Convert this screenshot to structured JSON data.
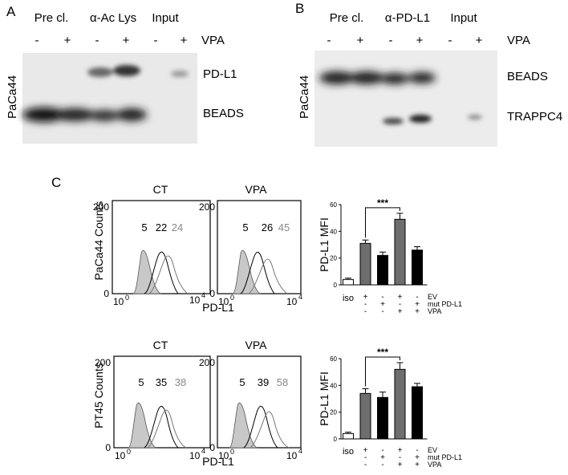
{
  "panelA": {
    "letter": "A",
    "groups": [
      "Pre cl.",
      "α-Ac Lys",
      "Input"
    ],
    "lanes": [
      "-",
      "+",
      "-",
      "+",
      "-",
      "+"
    ],
    "treatment": "VPA",
    "cellLine": "PaCa44",
    "bands": [
      "PD-L1",
      "BEADS"
    ]
  },
  "panelB": {
    "letter": "B",
    "groups": [
      "Pre cl.",
      "α-PD-L1",
      "Input"
    ],
    "lanes": [
      "-",
      "+",
      "-",
      "+",
      "-",
      "+"
    ],
    "treatment": "VPA",
    "cellLine": "PaCa44",
    "bands": [
      "BEADS",
      "TRAPPC4"
    ]
  },
  "panelC": {
    "letter": "C",
    "flow": [
      {
        "ylabel": "PaCa44 Counts",
        "xlabel": "PD-L1",
        "plots": [
          {
            "title": "CT",
            "nums": [
              "5",
              "22",
              "24"
            ]
          },
          {
            "title": "VPA",
            "nums": [
              "5",
              "26",
              "45"
            ]
          }
        ]
      },
      {
        "ylabel": "PT45 Counts",
        "xlabel": "PD-L1",
        "plots": [
          {
            "title": "CT",
            "nums": [
              "5",
              "35",
              "38"
            ]
          },
          {
            "title": "VPA",
            "nums": [
              "5",
              "39",
              "58"
            ]
          }
        ]
      }
    ],
    "ticks": {
      "y0": "0",
      "y200": "200",
      "x_base": "10",
      "x_exp_low": "0",
      "x_exp_high": "4"
    },
    "significance": "***",
    "table": {
      "iso": "iso",
      "rows": [
        {
          "label": "EV",
          "signs": [
            "+",
            "-",
            "+",
            "-"
          ]
        },
        {
          "label": "mut PD-L1",
          "signs": [
            "-",
            "+",
            "-",
            "+"
          ]
        },
        {
          "label": "VPA",
          "signs": [
            "-",
            "-",
            "+",
            "+"
          ]
        }
      ]
    }
  },
  "chart_data": [
    {
      "type": "bar",
      "ylabel": "PD-L1 MFI",
      "categories": [
        "iso",
        "EV",
        "mut PD-L1",
        "EV + VPA",
        "mut PD-L1 + VPA"
      ],
      "values": [
        4,
        31,
        22,
        49,
        26
      ],
      "errors": [
        1,
        2.5,
        2.5,
        4.5,
        2.5
      ],
      "colors": [
        "#ffffff",
        "#6e6e6e",
        "#000000",
        "#6e6e6e",
        "#000000"
      ],
      "ylim": [
        0,
        60
      ],
      "yticks": [
        "0",
        "20",
        "40",
        "60"
      ]
    },
    {
      "type": "bar",
      "ylabel": "PD-L1 MFI",
      "categories": [
        "iso",
        "EV",
        "mut PD-L1",
        "EV + VPA",
        "mut PD-L1 + VPA"
      ],
      "values": [
        4,
        34,
        31,
        52,
        39
      ],
      "errors": [
        1,
        3.5,
        4,
        5,
        2.5
      ],
      "colors": [
        "#ffffff",
        "#6e6e6e",
        "#000000",
        "#6e6e6e",
        "#000000"
      ],
      "ylim": [
        0,
        60
      ],
      "yticks": [
        "0",
        "20",
        "40",
        "60"
      ]
    }
  ]
}
